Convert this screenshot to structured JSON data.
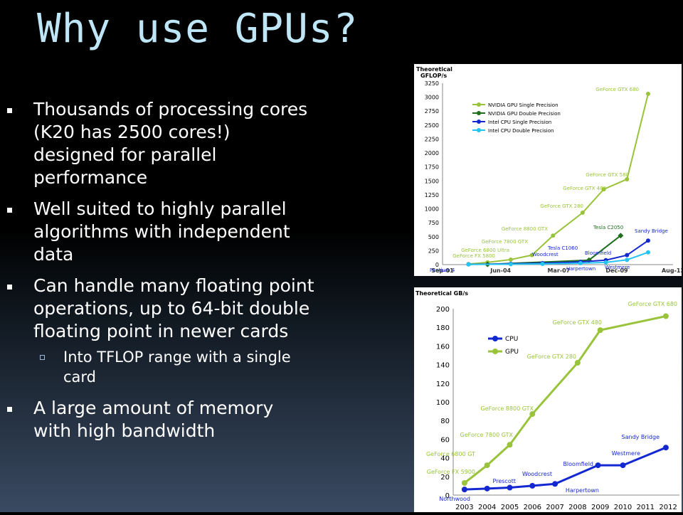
{
  "slide": {
    "title": "Why use GPUs?",
    "bullets": [
      "Thousands of processing cores (K20 has 2500 cores!) designed for parallel performance",
      "Well suited to highly parallel algorithms with independent data",
      "Can handle many floating point operations, up to 64-bit double floating point in newer cards"
    ],
    "sub_bullet": "Into TFLOP range with a single card",
    "last_bullet": "A large amount of memory with high bandwidth"
  },
  "colors": {
    "gpu": "#99c33a",
    "gpu_double": "#1f6f1f",
    "cpu": "#1428d2",
    "cpu_double": "#25c3f0",
    "title": "#bfe6f6"
  },
  "chart_data": [
    {
      "type": "line",
      "title": "Theoretical GFLOP/s",
      "ylim": [
        0,
        3250
      ],
      "yticks": [
        0,
        250,
        500,
        750,
        1000,
        1250,
        1500,
        1750,
        2000,
        2250,
        2500,
        2750,
        3000,
        3250
      ],
      "x_ticks": [
        "Sep-01",
        "Jun-04",
        "Mar-07",
        "Dec-09",
        "Aug-12"
      ],
      "legend": "top-left",
      "series": [
        {
          "name": "NVIDIA GPU Single Precision",
          "color": "#99c33a",
          "points": [
            [
              2002.9,
              10
            ],
            [
              2003.8,
              40
            ],
            [
              2004.9,
              90
            ],
            [
              2005.9,
              170
            ],
            [
              2006.9,
              520
            ],
            [
              2008.3,
              930
            ],
            [
              2009.3,
              1350
            ],
            [
              2010.4,
              1530
            ],
            [
              2011.4,
              3060
            ]
          ]
        },
        {
          "name": "NVIDIA GPU Double Precision",
          "color": "#1f6f1f",
          "points": [
            [
              2003.8,
              5
            ],
            [
              2008.6,
              80
            ],
            [
              2010.1,
              520
            ]
          ]
        },
        {
          "name": "Intel CPU Single Precision",
          "color": "#1428d2",
          "points": [
            [
              2002.9,
              5
            ],
            [
              2004.9,
              15
            ],
            [
              2006.4,
              25
            ],
            [
              2008.2,
              50
            ],
            [
              2009.4,
              80
            ],
            [
              2010.4,
              170
            ],
            [
              2011.4,
              430
            ]
          ]
        },
        {
          "name": "Intel CPU Double Precision",
          "color": "#25c3f0",
          "points": [
            [
              2002.9,
              3
            ],
            [
              2004.9,
              8
            ],
            [
              2006.4,
              12
            ],
            [
              2008.2,
              25
            ],
            [
              2009.4,
              40
            ],
            [
              2010.4,
              85
            ],
            [
              2011.4,
              220
            ]
          ]
        }
      ],
      "annotations": [
        "GeForce GTX 680",
        "GeForce GTX 580",
        "GeForce GTX 480",
        "GeForce GTX 280",
        "GeForce 8800 GTX",
        "GeForce 7800 GTX",
        "GeForce 6800 Ultra",
        "GeForce FX 5800",
        "Tesla C2050",
        "Tesla C1060",
        "Sandy Bridge",
        "Bloomfield",
        "Woodcrest",
        "Harpertown",
        "Westmere",
        "Pentium 4"
      ]
    },
    {
      "type": "line",
      "title": "Theoretical GB/s",
      "ylim": [
        0,
        200
      ],
      "yticks": [
        0,
        20,
        40,
        60,
        80,
        100,
        120,
        140,
        160,
        180,
        200
      ],
      "categories": [
        "2003",
        "2004",
        "2005",
        "2006",
        "2007",
        "2008",
        "2009",
        "2010",
        "2011",
        "2012"
      ],
      "legend": "top-left",
      "series": [
        {
          "name": "CPU",
          "color": "#1428d2",
          "points": [
            [
              2003,
              6
            ],
            [
              2004,
              7
            ],
            [
              2005,
              8
            ],
            [
              2006,
              10
            ],
            [
              2007,
              12
            ],
            [
              2008.9,
              32
            ],
            [
              2010,
              32
            ],
            [
              2011.9,
              51
            ]
          ]
        },
        {
          "name": "GPU",
          "color": "#99c33a",
          "points": [
            [
              2003,
              13
            ],
            [
              2004,
              32
            ],
            [
              2005,
              54
            ],
            [
              2006,
              87
            ],
            [
              2008,
              142
            ],
            [
              2009,
              177
            ],
            [
              2011.9,
              192
            ]
          ]
        }
      ],
      "annotations": [
        "GeForce GTX 680",
        "GeForce GTX 480",
        "GeForce GTX 280",
        "GeForce 8800 GTX",
        "GeForce 7800 GTX",
        "GeForce 6800 GT",
        "GeForce FX 5900",
        "Sandy Bridge",
        "Westmere",
        "Bloomfield",
        "Woodcrest",
        "Prescott",
        "Harpertown",
        "Northwood"
      ]
    }
  ]
}
